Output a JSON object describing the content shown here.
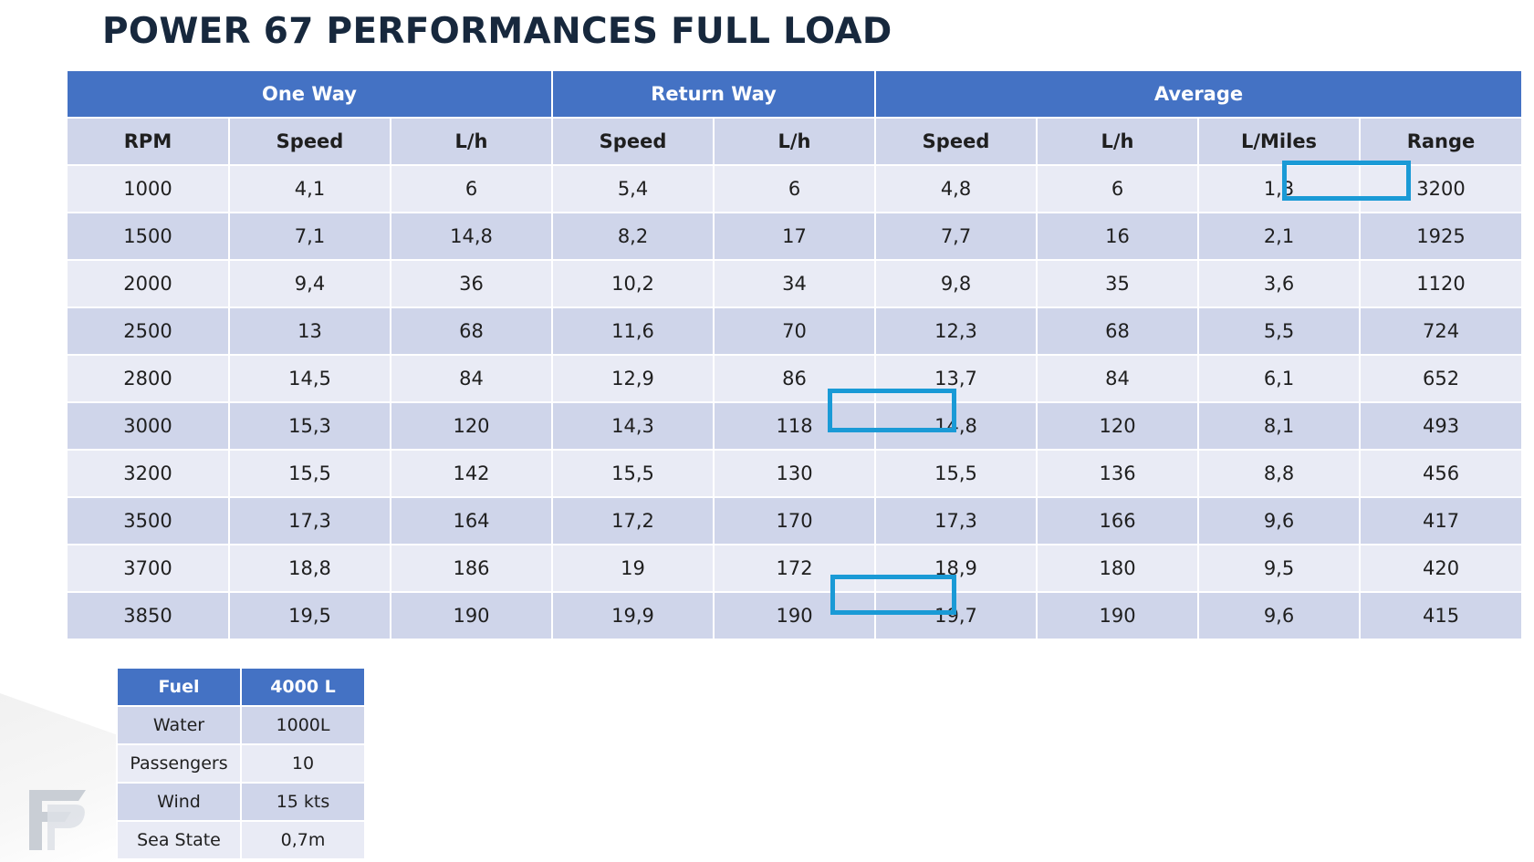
{
  "title": "POWER 67 PERFORMANCES FULL LOAD",
  "table": {
    "groups": [
      "One Way",
      "Return Way",
      "Average"
    ],
    "columns": [
      "RPM",
      "Speed",
      "L/h",
      "Speed",
      "L/h",
      "Speed",
      "L/h",
      "L/Miles",
      "Range"
    ],
    "rows": [
      [
        "1000",
        "4,1",
        "6",
        "5,4",
        "6",
        "4,8",
        "6",
        "1,3",
        "3200"
      ],
      [
        "1500",
        "7,1",
        "14,8",
        "8,2",
        "17",
        "7,7",
        "16",
        "2,1",
        "1925"
      ],
      [
        "2000",
        "9,4",
        "36",
        "10,2",
        "34",
        "9,8",
        "35",
        "3,6",
        "1120"
      ],
      [
        "2500",
        "13",
        "68",
        "11,6",
        "70",
        "12,3",
        "68",
        "5,5",
        "724"
      ],
      [
        "2800",
        "14,5",
        "84",
        "12,9",
        "86",
        "13,7",
        "84",
        "6,1",
        "652"
      ],
      [
        "3000",
        "15,3",
        "120",
        "14,3",
        "118",
        "14,8",
        "120",
        "8,1",
        "493"
      ],
      [
        "3200",
        "15,5",
        "142",
        "15,5",
        "130",
        "15,5",
        "136",
        "8,8",
        "456"
      ],
      [
        "3500",
        "17,3",
        "164",
        "17,2",
        "170",
        "17,3",
        "166",
        "9,6",
        "417"
      ],
      [
        "3700",
        "18,8",
        "186",
        "19",
        "172",
        "18,9",
        "180",
        "9,5",
        "420"
      ],
      [
        "3850",
        "19,5",
        "190",
        "19,9",
        "190",
        "19,7",
        "190",
        "9,6",
        "415"
      ]
    ]
  },
  "highlights": {
    "color": "#1a9ad6",
    "values": [
      "3200",
      "14,8",
      "19,7"
    ]
  },
  "conditions": {
    "header": [
      "Fuel",
      "4000 L"
    ],
    "rows": [
      [
        "Water",
        "1000L"
      ],
      [
        "Passengers",
        "10"
      ],
      [
        "Wind",
        "15 kts"
      ],
      [
        "Sea State",
        "0,7m"
      ]
    ]
  },
  "colors": {
    "header_blue": "#4472c4",
    "row_light": "#e9ebf5",
    "row_dark": "#cfd5ea",
    "title": "#17283d"
  },
  "logo": {
    "icon": "brand-logo-icon"
  }
}
